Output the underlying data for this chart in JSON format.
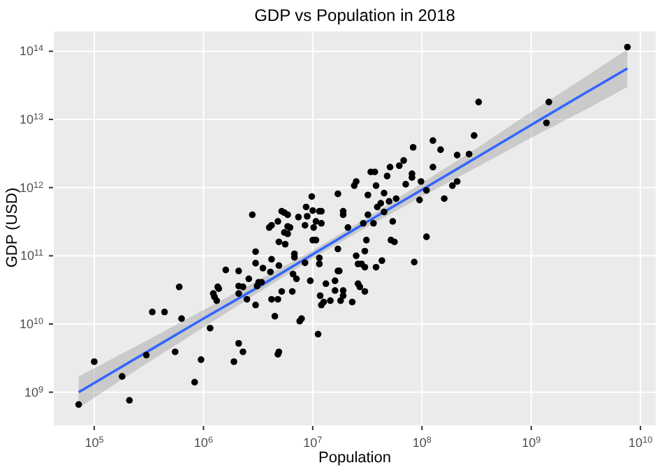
{
  "chart_data": {
    "type": "scatter",
    "title": "GDP vs Population in 2018",
    "xlabel": "Population",
    "ylabel": "GDP (USD)",
    "log": "xy",
    "grid": true,
    "xlim": [
      42000.0,
      14000000000.0
    ],
    "ylim": [
      320000000.0,
      200000000000000.0
    ],
    "xticks": [
      {
        "value": 100000.0,
        "label": "10$^{5}$"
      },
      {
        "value": 1000000.0,
        "label": "10$^{6}$"
      },
      {
        "value": 10000000.0,
        "label": "10$^{7}$"
      },
      {
        "value": 100000000.0,
        "label": "10$^{8}$"
      },
      {
        "value": 1000000000.0,
        "label": "10$^{9}$"
      },
      {
        "value": 10000000000.0,
        "label": "10$^{10}$"
      }
    ],
    "yticks": [
      {
        "value": 1000000000.0,
        "label": "10$^{9}$"
      },
      {
        "value": 10000000000.0,
        "label": "10$^{10}$"
      },
      {
        "value": 100000000000.0,
        "label": "10$^{11}$"
      },
      {
        "value": 1000000000000.0,
        "label": "10$^{12}$"
      },
      {
        "value": 10000000000000.0,
        "label": "10$^{13}$"
      },
      {
        "value": 100000000000000.0,
        "label": "10$^{14}$"
      }
    ],
    "series": [
      {
        "marker": "circle",
        "color": "#000000",
        "x": [
          72000.0,
          100000.0,
          180000.0,
          210000.0,
          300000.0,
          340000.0,
          440000.0,
          550000.0,
          600000.0,
          630000.0,
          830000.0,
          950000.0,
          1150000.0,
          1230000.0,
          1260000.0,
          1320000.0,
          1350000.0,
          1380000.0,
          1600000.0,
          1900000.0,
          2100000.0,
          2100000.0,
          2100000.0,
          2100000.0,
          2300000.0,
          2300000.0,
          2500000.0,
          2600000.0,
          3000000.0,
          3000000.0,
          3000000.0,
          3100000.0,
          3200000.0,
          3400000.0,
          3500000.0,
          4100000.0,
          4200000.0,
          4200000.0,
          4500000.0,
          4800000.0,
          4900000.0,
          4800000.0,
          4900000.0,
          5200000.0,
          5500000.0,
          6200000.0,
          6500000.0,
          6600000.0,
          6800000.0,
          7100000.0,
          7600000.0,
          7900000.0,
          8500000.0,
          9500000.0,
          10000000.0,
          10700000.0,
          11200000.0,
          11500000.0,
          11500000.0,
          11700000.0,
          12000000.0,
          12600000.0,
          13200000.0,
          12000000.0,
          4000000.0,
          4900000.0,
          5600000.0,
          5900000.0,
          6800000.0,
          14500000.0,
          16000000.0,
          21000000.0,
          31000000.0,
          17000000.0,
          25000000.0,
          30000000.0,
          26000000.0,
          28000000.0,
          30000000.0,
          38000000.0,
          43000000.0,
          52000000.0,
          56000000.0,
          85000000.0,
          110000000.0,
          17000000.0,
          17500000.0,
          26000000.0,
          27000000.0,
          30000000.0,
          19000000.0,
          19000000.0,
          16000000.0,
          18000000.0,
          23000000.0,
          7600000000.0,
          1450000000.0,
          1380000000.0,
          330000000.0,
          300000000.0,
          270000000.0,
          210000000.0,
          126000000.0,
          148000000.0,
          83000000.0,
          126000000.0,
          68000000.0,
          62000000.0,
          51000000.0,
          81000000.0,
          81000000.0,
          98000000.0,
          71000000.0,
          48000000.0,
          34000000.0,
          37000000.0,
          25000000.0,
          24000000.0,
          38000000.0,
          32000000.0,
          45000000.0,
          17000000.0,
          110000000.0,
          210000000.0,
          190000000.0,
          160000000.0,
          95000000.0,
          58000000.0,
          50000000.0,
          42000000.0,
          39000000.0,
          19000000.0,
          19000000.0,
          32000000.0,
          45000000.0,
          29000000.0,
          36000000.0,
          54000000.0,
          12000000.0,
          2800000.0,
          4200000.0,
          4800000.0,
          5200000.0,
          5500000.0,
          5900000.0,
          5900000.0,
          7400000.0,
          8700000.0,
          9800000.0,
          8900000.0,
          10000000.0,
          11500000.0,
          10700000.0,
          8500000.0,
          10200000.0
        ],
        "values": [
          660000000.0,
          2800000000.0,
          1700000000.0,
          760000000.0,
          3500000000.0,
          15000000000.0,
          15000000000.0,
          3900000000.0,
          35000000000.0,
          12000000000.0,
          1400000000.0,
          3000000000.0,
          8700000000.0,
          28000000000.0,
          25000000000.0,
          22000000000.0,
          35000000000.0,
          33000000000.0,
          62000000000.0,
          2800000000.0,
          60000000000.0,
          5200000000.0,
          28000000000.0,
          36000000000.0,
          35000000000.0,
          3900000000.0,
          23000000000.0,
          46000000000.0,
          78000000000.0,
          19000000000.0,
          115000000000.0,
          36000000000.0,
          41000000000.0,
          41000000000.0,
          66000000000.0,
          58000000000.0,
          23000000000.0,
          89000000000.0,
          13000000000.0,
          23000000000.0,
          72000000000.0,
          3600000000.0,
          3900000000.0,
          30000000000.0,
          220000000000.0,
          260000000000.0,
          30000000000.0,
          54000000000.0,
          95000000000.0,
          46000000000.0,
          11000000000.0,
          12000000000.0,
          79000000000.0,
          43000000000.0,
          170000000000.0,
          170000000000.0,
          7100000000.0,
          76000000000.0,
          93000000000.0,
          26000000000.0,
          19000000000.0,
          21000000000.0,
          39000000000.0,
          300000000000.0,
          260000000000.0,
          160000000000.0,
          148000000000.0,
          210000000000.0,
          107000000000.0,
          22000000000.0,
          43000000000.0,
          260000000000.0,
          170000000000.0,
          126000000000.0,
          100000000000.0,
          117000000000.0,
          76000000000.0,
          76000000000.0,
          68000000000.0,
          68000000000.0,
          85000000000.0,
          170000000000.0,
          160000000000.0,
          81000000000.0,
          190000000000.0,
          60000000000.0,
          60000000000.0,
          39000000000.0,
          35000000000.0,
          30000000000.0,
          31000000000.0,
          26000000000.0,
          31000000000.0,
          22000000000.0,
          21000000000.0,
          115000000000000.0,
          18000000000000.0,
          8900000000000.0,
          18000000000000.0,
          5800000000000.0,
          3100000000000.0,
          3000000000000.0,
          4900000000000.0,
          3600000000000.0,
          3900000000000.0,
          2000000000000.0,
          2500000000000.0,
          2100000000000.0,
          2000000000000.0,
          1600000000000.0,
          1410000000000.0,
          1230000000000.0,
          1120000000000.0,
          1480000000000.0,
          1700000000000.0,
          1700000000000.0,
          1230000000000.0,
          1070000000000.0,
          1070000000000.0,
          780000000000.0,
          830000000000.0,
          810000000000.0,
          910000000000.0,
          1230000000000.0,
          1070000000000.0,
          690000000000.0,
          660000000000.0,
          690000000000.0,
          630000000000.0,
          590000000000.0,
          520000000000.0,
          450000000000.0,
          400000000000.0,
          400000000000.0,
          440000000000.0,
          300000000000.0,
          300000000000.0,
          320000000000.0,
          450000000000.0,
          400000000000.0,
          280000000000.0,
          320000000000.0,
          450000000000.0,
          430000000000.0,
          400000000000.0,
          270000000000.0,
          370000000000.0,
          520000000000.0,
          740000000000.0,
          380000000000.0,
          460000000000.0,
          450000000000.0,
          320000000000.0,
          280000000000.0,
          260000000000.0
        ]
      },
      {
        "type": "line",
        "color": "#3366ff",
        "x": [
          72000.0,
          320000.0,
          1000000.0,
          3200000.0,
          10000000.0,
          32000000.0,
          100000000.0,
          320000000.0,
          1000000000.0,
          3200000000.0,
          7600000000.0
        ],
        "values": [
          1000000000.0,
          4100000000.0,
          12000000000.0,
          35000000000.0,
          105000000000.0,
          320000000000.0,
          930000000000.0,
          2800000000000.0,
          8300000000000.0,
          25000000000000.0,
          56000000000000.0
        ],
        "lower": [
          590000000.0,
          2800000000.0,
          8900000000.0,
          29000000000.0,
          91000000000.0,
          270000000000.0,
          740000000000.0,
          2000000000000.0,
          5400000000000.0,
          14100000000000.0,
          30000000000000.0
        ],
        "upper": [
          1700000000.0,
          6000000000.0,
          16000000000.0,
          44000000000.0,
          120000000000.0,
          370000000000.0,
          1170000000000.0,
          3800000000000.0,
          12900000000000.0,
          43000000000000.0,
          107000000000000.0
        ]
      }
    ]
  }
}
